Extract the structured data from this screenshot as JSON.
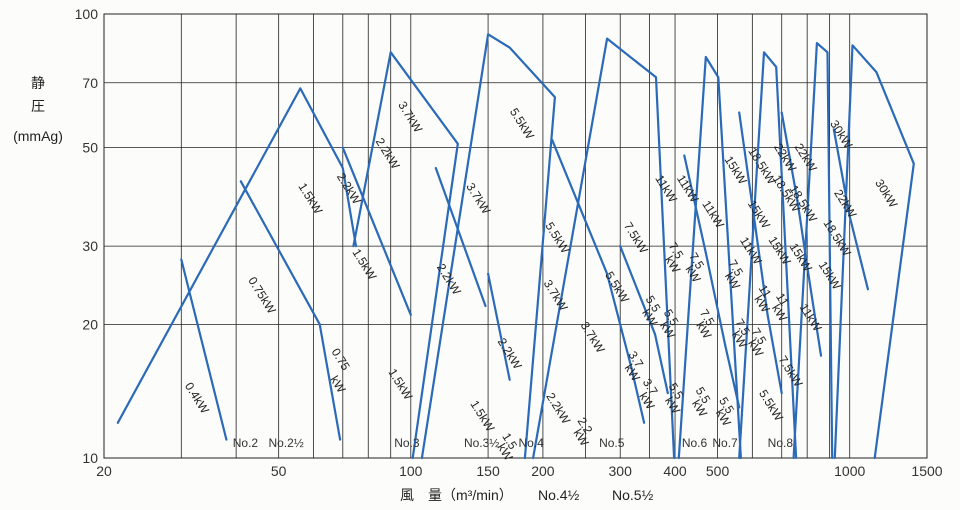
{
  "chart_data": {
    "type": "line",
    "title": "",
    "ylabel_lines": [
      "静",
      "圧",
      "(mmAg)"
    ],
    "xlabel": "風　量（m³/min）",
    "x_scale": "log",
    "y_scale": "log",
    "xlim": [
      20,
      1500
    ],
    "ylim": [
      10,
      100
    ],
    "x_ticks": [
      20,
      50,
      100,
      150,
      200,
      300,
      400,
      500,
      1000,
      1500
    ],
    "y_ticks": [
      10,
      20,
      30,
      50,
      70,
      100
    ],
    "x_grid": [
      20,
      30,
      40,
      50,
      60,
      70,
      80,
      90,
      100,
      150,
      200,
      250,
      300,
      350,
      400,
      500,
      600,
      700,
      800,
      900,
      1000,
      1500
    ],
    "grid": true,
    "curve_color": "#2a6ab8",
    "series": [
      {
        "points": [
          [
            21.5,
            12
          ],
          [
            56,
            68
          ],
          [
            70,
            45
          ],
          [
            75,
            30
          ]
        ]
      },
      {
        "points": [
          [
            74,
            30
          ],
          [
            90,
            82
          ],
          [
            128,
            51
          ],
          [
            101,
            10
          ]
        ]
      },
      {
        "points": [
          [
            106,
            10
          ],
          [
            150,
            90
          ],
          [
            168,
            84
          ],
          [
            213,
            65
          ],
          [
            182,
            10
          ]
        ]
      },
      {
        "points": [
          [
            190,
            10
          ],
          [
            280,
            88
          ],
          [
            362,
            72
          ],
          [
            398,
            10
          ]
        ]
      },
      {
        "points": [
          [
            408,
            10
          ],
          [
            470,
            80
          ],
          [
            502,
            72
          ],
          [
            565,
            10
          ]
        ]
      },
      {
        "points": [
          [
            560,
            10
          ],
          [
            638,
            82
          ],
          [
            680,
            76
          ],
          [
            755,
            10
          ]
        ]
      },
      {
        "points": [
          [
            745,
            10
          ],
          [
            842,
            86
          ],
          [
            890,
            82
          ],
          [
            912,
            10
          ]
        ]
      },
      {
        "points": [
          [
            925,
            10
          ],
          [
            1015,
            85
          ],
          [
            1150,
            74
          ],
          [
            1400,
            46
          ],
          [
            1140,
            10
          ]
        ]
      },
      {
        "points": [
          [
            30,
            28
          ],
          [
            38,
            11
          ]
        ]
      },
      {
        "points": [
          [
            41,
            42
          ],
          [
            62,
            20
          ]
        ]
      },
      {
        "points": [
          [
            62,
            20
          ],
          [
            69,
            11
          ]
        ]
      },
      {
        "points": [
          [
            70,
            50
          ],
          [
            100,
            21
          ]
        ]
      },
      {
        "points": [
          [
            114,
            45
          ],
          [
            148,
            22
          ]
        ]
      },
      {
        "points": [
          [
            150,
            26
          ],
          [
            168,
            15
          ]
        ]
      },
      {
        "points": [
          [
            210,
            52
          ],
          [
            280,
            26
          ]
        ]
      },
      {
        "points": [
          [
            280,
            26
          ],
          [
            318,
            16
          ]
        ]
      },
      {
        "points": [
          [
            318,
            16
          ],
          [
            340,
            12
          ]
        ]
      },
      {
        "points": [
          [
            300,
            30
          ],
          [
            360,
            19
          ]
        ]
      },
      {
        "points": [
          [
            360,
            19
          ],
          [
            385,
            14
          ]
        ]
      },
      {
        "points": [
          [
            420,
            48
          ],
          [
            470,
            29
          ]
        ]
      },
      {
        "points": [
          [
            470,
            29
          ],
          [
            520,
            18
          ]
        ]
      },
      {
        "points": [
          [
            520,
            18
          ],
          [
            560,
            13
          ]
        ]
      },
      {
        "points": [
          [
            560,
            60
          ],
          [
            610,
            33
          ]
        ]
      },
      {
        "points": [
          [
            610,
            33
          ],
          [
            650,
            21
          ]
        ]
      },
      {
        "points": [
          [
            650,
            21
          ],
          [
            700,
            14
          ]
        ]
      },
      {
        "points": [
          [
            700,
            60
          ],
          [
            760,
            38
          ]
        ]
      },
      {
        "points": [
          [
            760,
            38
          ],
          [
            810,
            25
          ]
        ]
      },
      {
        "points": [
          [
            810,
            25
          ],
          [
            860,
            17
          ]
        ]
      },
      {
        "points": [
          [
            920,
            55
          ],
          [
            1000,
            35
          ]
        ]
      },
      {
        "points": [
          [
            1000,
            35
          ],
          [
            1100,
            24
          ]
        ]
      }
    ],
    "power_labels": [
      {
        "text": "0.4kW",
        "x": 32,
        "y": 13.5,
        "angle": 58
      },
      {
        "text": "0.75kW",
        "x": 45,
        "y": 23,
        "angle": 58
      },
      {
        "text": "1.5kW",
        "x": 58,
        "y": 38,
        "angle": 58
      },
      {
        "text": "2.2kW",
        "x": 71,
        "y": 40,
        "angle": 58
      },
      {
        "text": "0.75",
        "x": 68,
        "y": 16.5,
        "angle": 58
      },
      {
        "text": "kW",
        "x": 67,
        "y": 14.5,
        "angle": 58
      },
      {
        "text": "1.5kW",
        "x": 77,
        "y": 27,
        "angle": 58
      },
      {
        "text": "2.2kW",
        "x": 87,
        "y": 48,
        "angle": 58
      },
      {
        "text": "3.7kW",
        "x": 98,
        "y": 58,
        "angle": 58
      },
      {
        "text": "1.5kW",
        "x": 93,
        "y": 14.5,
        "angle": 58
      },
      {
        "text": "2.2kW",
        "x": 120,
        "y": 25,
        "angle": 58
      },
      {
        "text": "3.7kW",
        "x": 140,
        "y": 38,
        "angle": 58
      },
      {
        "text": "5.5kW",
        "x": 176,
        "y": 56,
        "angle": 58
      },
      {
        "text": "1.5kW",
        "x": 143,
        "y": 12.3,
        "angle": 58
      },
      {
        "text": "1.5",
        "x": 165,
        "y": 10.8,
        "angle": 58
      },
      {
        "text": "kW",
        "x": 161,
        "y": 10.2,
        "angle": 58
      },
      {
        "text": "2.2kW",
        "x": 165,
        "y": 17,
        "angle": 58
      },
      {
        "text": "3.7kW",
        "x": 210,
        "y": 23,
        "angle": 58
      },
      {
        "text": "5.5kW",
        "x": 212,
        "y": 31,
        "angle": 58
      },
      {
        "text": "2.2kW",
        "x": 213,
        "y": 12.8,
        "angle": 58
      },
      {
        "text": "2.2",
        "x": 245,
        "y": 11.7,
        "angle": 58
      },
      {
        "text": "kW",
        "x": 240,
        "y": 11,
        "angle": 58
      },
      {
        "text": "3.7kW",
        "x": 255,
        "y": 18.5,
        "angle": 58
      },
      {
        "text": "5.5kW",
        "x": 290,
        "y": 24,
        "angle": 58
      },
      {
        "text": "7.5kW",
        "x": 320,
        "y": 31,
        "angle": 58
      },
      {
        "text": "11kW",
        "x": 375,
        "y": 40,
        "angle": 58
      },
      {
        "text": "3.7",
        "x": 320,
        "y": 16.5,
        "angle": 58
      },
      {
        "text": "kW",
        "x": 314,
        "y": 15.4,
        "angle": 58
      },
      {
        "text": "3.7",
        "x": 345,
        "y": 14.3,
        "angle": 58
      },
      {
        "text": "kW",
        "x": 339,
        "y": 13.3,
        "angle": 58
      },
      {
        "text": "5.5",
        "x": 350,
        "y": 22,
        "angle": 58
      },
      {
        "text": "kW",
        "x": 344,
        "y": 20.5,
        "angle": 58
      },
      {
        "text": "5.5",
        "x": 395,
        "y": 14,
        "angle": 58
      },
      {
        "text": "kW",
        "x": 388,
        "y": 13,
        "angle": 58
      },
      {
        "text": "5.5",
        "x": 385,
        "y": 20.5,
        "angle": 58
      },
      {
        "text": "kW",
        "x": 378,
        "y": 19.2,
        "angle": 58
      },
      {
        "text": "7.5",
        "x": 395,
        "y": 29,
        "angle": 58
      },
      {
        "text": "kW",
        "x": 388,
        "y": 27,
        "angle": 58
      },
      {
        "text": "11kW",
        "x": 420,
        "y": 40,
        "angle": 58
      },
      {
        "text": "7.5",
        "x": 440,
        "y": 27.5,
        "angle": 58
      },
      {
        "text": "kW",
        "x": 432,
        "y": 25.7,
        "angle": 58
      },
      {
        "text": "11kW",
        "x": 480,
        "y": 35,
        "angle": 58
      },
      {
        "text": "5.5",
        "x": 455,
        "y": 13.7,
        "angle": 58
      },
      {
        "text": "kW",
        "x": 447,
        "y": 12.8,
        "angle": 58
      },
      {
        "text": "7.5",
        "x": 465,
        "y": 20.5,
        "angle": 58
      },
      {
        "text": "kW",
        "x": 457,
        "y": 19.2,
        "angle": 58
      },
      {
        "text": "15kW",
        "x": 540,
        "y": 44,
        "angle": 58
      },
      {
        "text": "5.5",
        "x": 515,
        "y": 13,
        "angle": 58
      },
      {
        "text": "kW",
        "x": 506,
        "y": 12.2,
        "angle": 58
      },
      {
        "text": "7.5",
        "x": 540,
        "y": 26.5,
        "angle": 58
      },
      {
        "text": "kW",
        "x": 531,
        "y": 24.8,
        "angle": 58
      },
      {
        "text": "7.5",
        "x": 560,
        "y": 19.5,
        "angle": 58
      },
      {
        "text": "kW",
        "x": 551,
        "y": 18.3,
        "angle": 58
      },
      {
        "text": "11kW",
        "x": 585,
        "y": 29,
        "angle": 58
      },
      {
        "text": "15kW",
        "x": 610,
        "y": 35,
        "angle": 58
      },
      {
        "text": "18.5kW",
        "x": 620,
        "y": 45,
        "angle": 58
      },
      {
        "text": "11",
        "x": 630,
        "y": 23.5,
        "angle": 58
      },
      {
        "text": "kW",
        "x": 620,
        "y": 22,
        "angle": 58
      },
      {
        "text": "7.5",
        "x": 610,
        "y": 18.6,
        "angle": 58
      },
      {
        "text": "kW",
        "x": 600,
        "y": 17.5,
        "angle": 58
      },
      {
        "text": "15kW",
        "x": 680,
        "y": 29,
        "angle": 58
      },
      {
        "text": "18.5kW",
        "x": 705,
        "y": 39,
        "angle": 58
      },
      {
        "text": "22kW",
        "x": 700,
        "y": 47,
        "angle": 58
      },
      {
        "text": "11",
        "x": 690,
        "y": 22.5,
        "angle": 58
      },
      {
        "text": "kW",
        "x": 680,
        "y": 21,
        "angle": 58
      },
      {
        "text": "5.5kW",
        "x": 650,
        "y": 13,
        "angle": 58
      },
      {
        "text": "7.5kW",
        "x": 720,
        "y": 15.5,
        "angle": 58
      },
      {
        "text": "15kW",
        "x": 760,
        "y": 28,
        "angle": 58
      },
      {
        "text": "18.5kW",
        "x": 770,
        "y": 37,
        "angle": 58
      },
      {
        "text": "22kW",
        "x": 780,
        "y": 47,
        "angle": 58
      },
      {
        "text": "11kW",
        "x": 800,
        "y": 20.5,
        "angle": 58
      },
      {
        "text": "15kW",
        "x": 885,
        "y": 25.5,
        "angle": 58
      },
      {
        "text": "18.5kW",
        "x": 920,
        "y": 31,
        "angle": 58
      },
      {
        "text": "22kW",
        "x": 960,
        "y": 37,
        "angle": 58
      },
      {
        "text": "30kW",
        "x": 940,
        "y": 53,
        "angle": 58
      },
      {
        "text": "30kW",
        "x": 1190,
        "y": 39,
        "angle": 58
      }
    ],
    "model_labels": [
      {
        "text": "No.2",
        "x": 42,
        "y": 10.6
      },
      {
        "text": "No.2½",
        "x": 52,
        "y": 10.6
      },
      {
        "text": "No.3",
        "x": 98,
        "y": 10.6
      },
      {
        "text": "No.3½",
        "x": 145,
        "y": 10.6
      },
      {
        "text": "No.4",
        "x": 188,
        "y": 10.6
      },
      {
        "text": "No.5",
        "x": 287,
        "y": 10.6
      },
      {
        "text": "No.6",
        "x": 443,
        "y": 10.6
      },
      {
        "text": "No.7",
        "x": 520,
        "y": 10.6
      },
      {
        "text": "No.8",
        "x": 695,
        "y": 10.6
      }
    ],
    "extra_model_labels": [
      "No.4½",
      "No.5½"
    ]
  }
}
